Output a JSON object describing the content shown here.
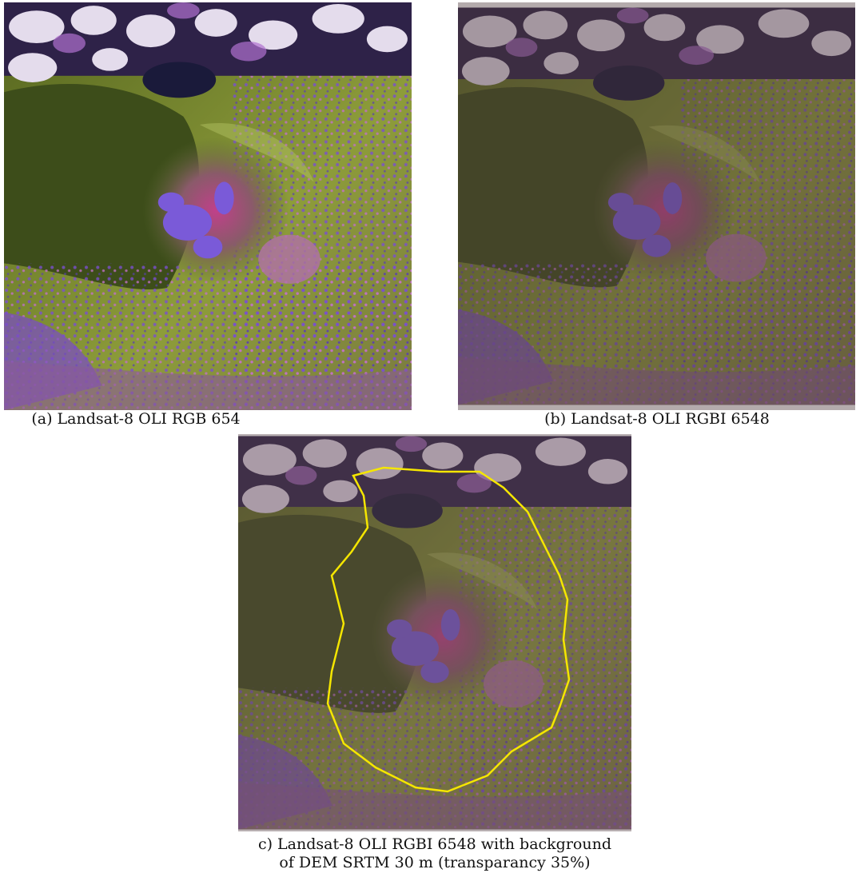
{
  "figures": [
    {
      "caption": "(a) Landsat-8 OLI RGB 654"
    },
    {
      "caption": "(b) Landsat-8 OLI RGBI 6548"
    },
    {
      "caption_lines": [
        "c) Landsat-8 OLI RGBI 6548 with background",
        "of DEM SRTM 30 m (transparancy 35%)"
      ]
    }
  ]
}
